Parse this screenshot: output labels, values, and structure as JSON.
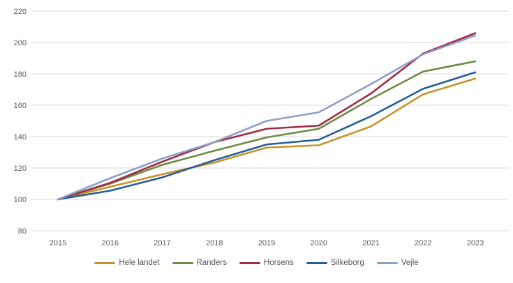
{
  "chart_data": {
    "type": "line",
    "title": "",
    "xlabel": "",
    "ylabel": "",
    "categories": [
      "2015",
      "2016",
      "2017",
      "2018",
      "2019",
      "2020",
      "2021",
      "2022",
      "2023"
    ],
    "series": [
      {
        "name": "Hele landet",
        "color": "#C8922A",
        "values": [
          100,
          108,
          116,
          123.5,
          133,
          134.5,
          146.5,
          167,
          177
        ]
      },
      {
        "name": "Randers",
        "color": "#6D8B43",
        "values": [
          100,
          110,
          122,
          131,
          139.5,
          145,
          164,
          181.5,
          188
        ]
      },
      {
        "name": "Horsens",
        "color": "#A02B43",
        "values": [
          100,
          110.5,
          124,
          136.5,
          145,
          147,
          167.5,
          193,
          206
        ]
      },
      {
        "name": "Silkeborg",
        "color": "#265D99",
        "values": [
          100,
          105.5,
          114,
          125,
          135,
          138,
          153,
          170.5,
          181
        ]
      },
      {
        "name": "Vejle",
        "color": "#8C9FC8",
        "values": [
          100,
          113.5,
          126,
          136.5,
          150,
          155.5,
          173.5,
          192.5,
          204.5
        ]
      }
    ],
    "ylim": [
      80,
      220
    ],
    "yticks": [
      80,
      100,
      120,
      140,
      160,
      180,
      200,
      220
    ],
    "grid": "horizontal",
    "gridline_color": "#D9D9D9",
    "tick_label_color": "#595959",
    "legend_position": "bottom",
    "background_color": "#FFFFFF"
  }
}
